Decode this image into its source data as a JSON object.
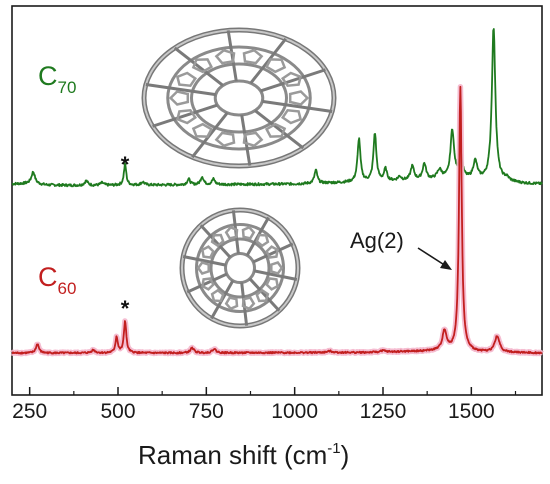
{
  "chart_data": {
    "type": "line",
    "xlabel": "Raman shift (cm",
    "xlabel_sup": "-1",
    "xlabel_tail": ")",
    "xlim": [
      200,
      1700
    ],
    "xticks": [
      {
        "value": 250,
        "label": "250"
      },
      {
        "value": 500,
        "label": "500"
      },
      {
        "value": 750,
        "label": "750"
      },
      {
        "value": 1000,
        "label": "1000"
      },
      {
        "value": 1250,
        "label": "1250"
      },
      {
        "value": 1500,
        "label": "1500"
      }
    ],
    "y_axis_shown": false,
    "grid": false,
    "series": [
      {
        "name": "C70",
        "label_main": "C",
        "label_sub": "70",
        "color": "#1f7a1f",
        "baseline": 0,
        "background": [
          [
            200,
            0.2
          ],
          [
            250,
            0.25
          ],
          [
            300,
            0.1
          ],
          [
            400,
            0.05
          ],
          [
            600,
            0.1
          ],
          [
            800,
            0.15
          ],
          [
            1000,
            0.2
          ],
          [
            1150,
            0.35
          ],
          [
            1250,
            0.45
          ],
          [
            1350,
            0.55
          ],
          [
            1450,
            0.7
          ],
          [
            1500,
            0.6
          ],
          [
            1560,
            0.5
          ],
          [
            1650,
            0.25
          ],
          [
            1700,
            0.2
          ]
        ],
        "peaks": [
          {
            "x": 260,
            "h": 1.2,
            "w": 6
          },
          {
            "x": 410,
            "h": 0.45,
            "w": 6
          },
          {
            "x": 455,
            "h": 0.25,
            "w": 6
          },
          {
            "x": 520,
            "h": 2.1,
            "w": 4
          },
          {
            "x": 570,
            "h": 0.3,
            "w": 6
          },
          {
            "x": 700,
            "h": 0.55,
            "w": 5
          },
          {
            "x": 738,
            "h": 0.8,
            "w": 5
          },
          {
            "x": 770,
            "h": 0.55,
            "w": 5
          },
          {
            "x": 1060,
            "h": 1.3,
            "w": 5
          },
          {
            "x": 1182,
            "h": 4.3,
            "w": 5
          },
          {
            "x": 1227,
            "h": 4.8,
            "w": 5
          },
          {
            "x": 1257,
            "h": 1.2,
            "w": 5
          },
          {
            "x": 1297,
            "h": 0.4,
            "w": 6
          },
          {
            "x": 1333,
            "h": 1.4,
            "w": 6
          },
          {
            "x": 1367,
            "h": 1.6,
            "w": 6
          },
          {
            "x": 1410,
            "h": 0.9,
            "w": 8
          },
          {
            "x": 1446,
            "h": 4.8,
            "w": 6
          },
          {
            "x": 1470,
            "h": 2.3,
            "w": 6
          },
          {
            "x": 1511,
            "h": 1.8,
            "w": 7
          },
          {
            "x": 1563,
            "h": 15.3,
            "w": 6
          },
          {
            "x": 1600,
            "h": 0.3,
            "w": 8
          }
        ]
      },
      {
        "name": "C60",
        "label_main": "C",
        "label_sub": "60",
        "color": "#c21f1f",
        "highlight": "#f4b6cc",
        "baseline": 0,
        "background": [
          [
            200,
            0.1
          ],
          [
            600,
            0.1
          ],
          [
            1200,
            0.15
          ],
          [
            1400,
            0.3
          ],
          [
            1500,
            0.2
          ],
          [
            1700,
            0.1
          ]
        ],
        "peaks": [
          {
            "x": 272,
            "h": 0.9,
            "w": 5
          },
          {
            "x": 430,
            "h": 0.3,
            "w": 6
          },
          {
            "x": 496,
            "h": 1.6,
            "w": 4
          },
          {
            "x": 520,
            "h": 3.2,
            "w": 4
          },
          {
            "x": 710,
            "h": 0.5,
            "w": 6
          },
          {
            "x": 772,
            "h": 0.4,
            "w": 6
          },
          {
            "x": 1100,
            "h": 0.15,
            "w": 8
          },
          {
            "x": 1250,
            "h": 0.15,
            "w": 8
          },
          {
            "x": 1424,
            "h": 2.0,
            "w": 7
          },
          {
            "x": 1469,
            "h": 26.5,
            "w": 4.5
          },
          {
            "x": 1573,
            "h": 1.6,
            "w": 8
          }
        ]
      }
    ],
    "annotations": [
      {
        "text": "*",
        "x": 520,
        "series": "C70"
      },
      {
        "text": "*",
        "x": 520,
        "series": "C60"
      },
      {
        "text": "Ag(2)",
        "x": 1469,
        "series": "C60"
      }
    ]
  },
  "colors": {
    "axis": "#1a1a1a",
    "c70": "#1f7a1f",
    "c60": "#c21f1f",
    "mol_stroke": "#555555",
    "mol_fill": "#9a9a9a"
  },
  "icons": [
    "c70-molecule-image",
    "c60-molecule-image",
    "annotation-arrow-icon"
  ]
}
